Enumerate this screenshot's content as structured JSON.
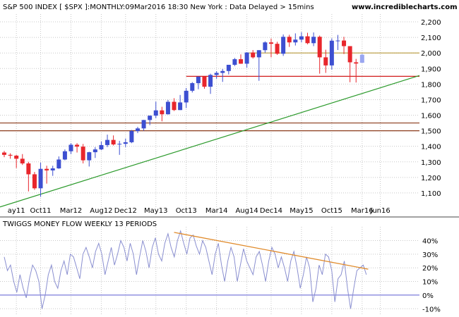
{
  "header": {
    "title": "S&P 500 INDEX [ $SPX ]:MONTHLY:09Mar2016 18:30 New York : Data Delayed > 15mins",
    "site": "www.incrediblecharts.com"
  },
  "colors": {
    "up": "#3d4fd1",
    "down": "#e8262c",
    "grid": "#c8c8c8",
    "support_red": "#cc0000",
    "support_gold": "#b89a3a",
    "trendline_green": "#2b9a2b",
    "brown_line": "#8b3a1a",
    "indicator_line": "#8a8fd0",
    "indicator_trend": "#e08a2a",
    "zero_line": "#5a5ad0"
  },
  "chart_data": [
    {
      "type": "candlestick",
      "title": "S&P 500 INDEX [ $SPX ]:MONTHLY:09Mar2016 18:30 New York : Data Delayed > 15mins",
      "x_tick_labels": [
        "ay11",
        "Oct11",
        "Mar12",
        "Aug12",
        "Dec12",
        "May13",
        "Oct13",
        "Mar14",
        "Aug14",
        "Dec14",
        "May15",
        "Oct15",
        "Mar16",
        "Jun16"
      ],
      "y_tick_labels": [
        "1,100",
        "1,200",
        "1,300",
        "1,400",
        "1,500",
        "1,600",
        "1,700",
        "1,800",
        "1,900",
        "2,000",
        "2,100",
        "2,200"
      ],
      "ylim": [
        1000,
        2250
      ],
      "grid": true,
      "bars": [
        {
          "month": "Apr11",
          "o": 1360,
          "h": 1370,
          "l": 1330,
          "c": 1345
        },
        {
          "month": "May11",
          "o": 1345,
          "h": 1355,
          "l": 1320,
          "c": 1340
        },
        {
          "month": "Jun11",
          "o": 1340,
          "h": 1345,
          "l": 1260,
          "c": 1320
        },
        {
          "month": "Jul11",
          "o": 1320,
          "h": 1350,
          "l": 1280,
          "c": 1290
        },
        {
          "month": "Aug11",
          "o": 1290,
          "h": 1300,
          "l": 1110,
          "c": 1220
        },
        {
          "month": "Sep11",
          "o": 1220,
          "h": 1235,
          "l": 1120,
          "c": 1130
        },
        {
          "month": "Oct11",
          "o": 1130,
          "h": 1295,
          "l": 1075,
          "c": 1255
        },
        {
          "month": "Nov11",
          "o": 1255,
          "h": 1275,
          "l": 1160,
          "c": 1245
        },
        {
          "month": "Dec11",
          "o": 1245,
          "h": 1275,
          "l": 1210,
          "c": 1258
        },
        {
          "month": "Jan12",
          "o": 1258,
          "h": 1335,
          "l": 1255,
          "c": 1315
        },
        {
          "month": "Feb12",
          "o": 1315,
          "h": 1380,
          "l": 1310,
          "c": 1368
        },
        {
          "month": "Mar12",
          "o": 1368,
          "h": 1420,
          "l": 1350,
          "c": 1410
        },
        {
          "month": "Apr12",
          "o": 1410,
          "h": 1420,
          "l": 1360,
          "c": 1398
        },
        {
          "month": "May12",
          "o": 1398,
          "h": 1415,
          "l": 1290,
          "c": 1310
        },
        {
          "month": "Jun12",
          "o": 1310,
          "h": 1365,
          "l": 1270,
          "c": 1362
        },
        {
          "month": "Jul12",
          "o": 1362,
          "h": 1395,
          "l": 1325,
          "c": 1380
        },
        {
          "month": "Aug12",
          "o": 1380,
          "h": 1430,
          "l": 1375,
          "c": 1408
        },
        {
          "month": "Sep12",
          "o": 1408,
          "h": 1475,
          "l": 1395,
          "c": 1441
        },
        {
          "month": "Oct12",
          "o": 1441,
          "h": 1470,
          "l": 1405,
          "c": 1412
        },
        {
          "month": "Nov12",
          "o": 1412,
          "h": 1435,
          "l": 1345,
          "c": 1416
        },
        {
          "month": "Dec12",
          "o": 1416,
          "h": 1450,
          "l": 1395,
          "c": 1426
        },
        {
          "month": "Jan13",
          "o": 1426,
          "h": 1505,
          "l": 1420,
          "c": 1498
        },
        {
          "month": "Feb13",
          "o": 1498,
          "h": 1525,
          "l": 1485,
          "c": 1515
        },
        {
          "month": "Mar13",
          "o": 1515,
          "h": 1570,
          "l": 1500,
          "c": 1569
        },
        {
          "month": "Apr13",
          "o": 1569,
          "h": 1598,
          "l": 1536,
          "c": 1597
        },
        {
          "month": "May13",
          "o": 1597,
          "h": 1687,
          "l": 1581,
          "c": 1631
        },
        {
          "month": "Jun13",
          "o": 1631,
          "h": 1654,
          "l": 1560,
          "c": 1606
        },
        {
          "month": "Jul13",
          "o": 1606,
          "h": 1698,
          "l": 1604,
          "c": 1686
        },
        {
          "month": "Aug13",
          "o": 1686,
          "h": 1709,
          "l": 1627,
          "c": 1633
        },
        {
          "month": "Sep13",
          "o": 1633,
          "h": 1730,
          "l": 1633,
          "c": 1682
        },
        {
          "month": "Oct13",
          "o": 1682,
          "h": 1775,
          "l": 1646,
          "c": 1757
        },
        {
          "month": "Nov13",
          "o": 1757,
          "h": 1813,
          "l": 1746,
          "c": 1806
        },
        {
          "month": "Dec13",
          "o": 1806,
          "h": 1849,
          "l": 1767,
          "c": 1848
        },
        {
          "month": "Jan14",
          "o": 1848,
          "h": 1850,
          "l": 1770,
          "c": 1783
        },
        {
          "month": "Feb14",
          "o": 1783,
          "h": 1867,
          "l": 1737,
          "c": 1859
        },
        {
          "month": "Mar14",
          "o": 1859,
          "h": 1883,
          "l": 1834,
          "c": 1872
        },
        {
          "month": "Apr14",
          "o": 1872,
          "h": 1897,
          "l": 1814,
          "c": 1884
        },
        {
          "month": "May14",
          "o": 1884,
          "h": 1924,
          "l": 1862,
          "c": 1924
        },
        {
          "month": "Jun14",
          "o": 1924,
          "h": 1968,
          "l": 1916,
          "c": 1960
        },
        {
          "month": "Jul14",
          "o": 1960,
          "h": 1991,
          "l": 1930,
          "c": 1931
        },
        {
          "month": "Aug14",
          "o": 1931,
          "h": 2005,
          "l": 1905,
          "c": 2003
        },
        {
          "month": "Sep14",
          "o": 2003,
          "h": 2019,
          "l": 1964,
          "c": 1972
        },
        {
          "month": "Oct14",
          "o": 1972,
          "h": 2018,
          "l": 1821,
          "c": 2018
        },
        {
          "month": "Nov14",
          "o": 2018,
          "h": 2075,
          "l": 2002,
          "c": 2068
        },
        {
          "month": "Dec14",
          "o": 2068,
          "h": 2093,
          "l": 1972,
          "c": 2059
        },
        {
          "month": "Jan15",
          "o": 2059,
          "h": 2072,
          "l": 1988,
          "c": 1995
        },
        {
          "month": "Feb15",
          "o": 1995,
          "h": 2119,
          "l": 1981,
          "c": 2104
        },
        {
          "month": "Mar15",
          "o": 2104,
          "h": 2117,
          "l": 2039,
          "c": 2068
        },
        {
          "month": "Apr15",
          "o": 2068,
          "h": 2126,
          "l": 2048,
          "c": 2086
        },
        {
          "month": "May15",
          "o": 2086,
          "h": 2134,
          "l": 2068,
          "c": 2107
        },
        {
          "month": "Jun15",
          "o": 2107,
          "h": 2130,
          "l": 2056,
          "c": 2063
        },
        {
          "month": "Jul15",
          "o": 2063,
          "h": 2132,
          "l": 2044,
          "c": 2104
        },
        {
          "month": "Aug15",
          "o": 2104,
          "h": 2112,
          "l": 1867,
          "c": 1972
        },
        {
          "month": "Sep15",
          "o": 1972,
          "h": 2021,
          "l": 1872,
          "c": 1920
        },
        {
          "month": "Oct15",
          "o": 1920,
          "h": 2094,
          "l": 1893,
          "c": 2079
        },
        {
          "month": "Nov15",
          "o": 2079,
          "h": 2116,
          "l": 2019,
          "c": 2080
        },
        {
          "month": "Dec15",
          "o": 2080,
          "h": 2104,
          "l": 1993,
          "c": 2044
        },
        {
          "month": "Jan16",
          "o": 2044,
          "h": 2039,
          "l": 1812,
          "c": 1940
        },
        {
          "month": "Feb16",
          "o": 1940,
          "h": 1962,
          "l": 1810,
          "c": 1932
        },
        {
          "month": "Mar16",
          "o": 1937,
          "h": 1996,
          "l": 1937,
          "c": 1989
        }
      ],
      "horizontal_lines": [
        {
          "value": 2000,
          "color": "#b89a3a",
          "x_from": "Aug14"
        },
        {
          "value": 1850,
          "color": "#cc0000",
          "x_from": "Oct13"
        },
        {
          "value": 1550,
          "color": "#8b3a1a"
        },
        {
          "value": 1500,
          "color": "#8b3a1a"
        }
      ],
      "trendline": {
        "from": {
          "month": "Apr11",
          "value": 1010
        },
        "to": {
          "month": "Jun16",
          "value": 1855
        },
        "color": "#2b9a2b"
      }
    },
    {
      "type": "line",
      "title": "TWIGGS MONEY FLOW WEEKLY 13 PERIODS",
      "y_tick_labels": [
        "-10%",
        "0%",
        "10%",
        "20%",
        "30%",
        "40%"
      ],
      "ylim": [
        -14,
        48
      ],
      "grid": true,
      "trendline": {
        "from": {
          "month": "Aug13",
          "value": 46
        },
        "to": {
          "month": "Apr16",
          "value": 19
        },
        "color": "#e08a2a"
      },
      "series": [
        {
          "values": [
            28,
            18,
            22,
            10,
            2,
            15,
            5,
            -2,
            12,
            22,
            18,
            10,
            -10,
            0,
            15,
            22,
            10,
            5,
            18,
            25,
            15,
            30,
            28,
            20,
            12,
            30,
            35,
            28,
            20,
            32,
            38,
            30,
            15,
            25,
            35,
            22,
            30,
            40,
            35,
            25,
            38,
            30,
            15,
            28,
            40,
            32,
            20,
            35,
            42,
            30,
            25,
            38,
            45,
            35,
            28,
            40,
            47,
            38,
            30,
            42,
            44,
            36,
            30,
            40,
            35,
            25,
            15,
            30,
            38,
            22,
            10,
            25,
            35,
            28,
            10,
            22,
            34,
            25,
            20,
            15,
            28,
            32,
            22,
            10,
            25,
            35,
            30,
            20,
            28,
            20,
            10,
            25,
            32,
            20,
            5,
            15,
            28,
            20,
            -5,
            5,
            22,
            15,
            30,
            28,
            18,
            -5,
            12,
            15,
            25,
            5,
            -10,
            5,
            18,
            20,
            22,
            15
          ]
        }
      ]
    }
  ]
}
